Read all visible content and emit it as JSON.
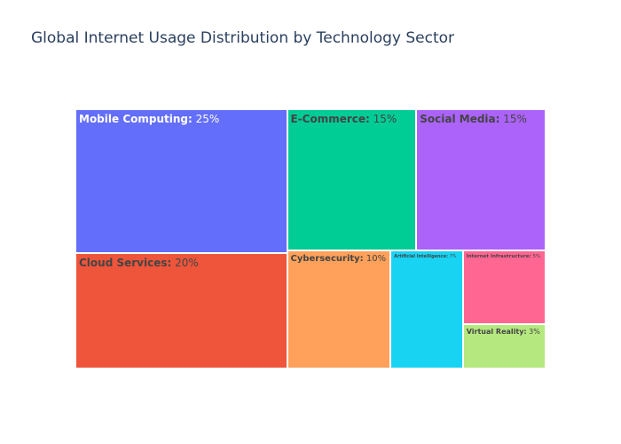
{
  "title": "Global Internet Usage Distribution by Technology Sector",
  "chart_data": {
    "type": "treemap",
    "title": "Global Internet Usage Distribution by Technology Sector",
    "unit": "%",
    "items": [
      {
        "label": "Mobile Computing",
        "value": 25,
        "color": "#636efa"
      },
      {
        "label": "Cloud Services",
        "value": 20,
        "color": "#ef553b"
      },
      {
        "label": "E-Commerce",
        "value": 15,
        "color": "#00cc96"
      },
      {
        "label": "Social Media",
        "value": 15,
        "color": "#ab63fa"
      },
      {
        "label": "Cybersecurity",
        "value": 10,
        "color": "#ffa15a"
      },
      {
        "label": "Artificial Intelligence",
        "value": 7,
        "color": "#19d3f3"
      },
      {
        "label": "Internet Infrastructure",
        "value": 5,
        "color": "#ff6692"
      },
      {
        "label": "Virtual Reality",
        "value": 3,
        "color": "#b6e880"
      }
    ]
  }
}
